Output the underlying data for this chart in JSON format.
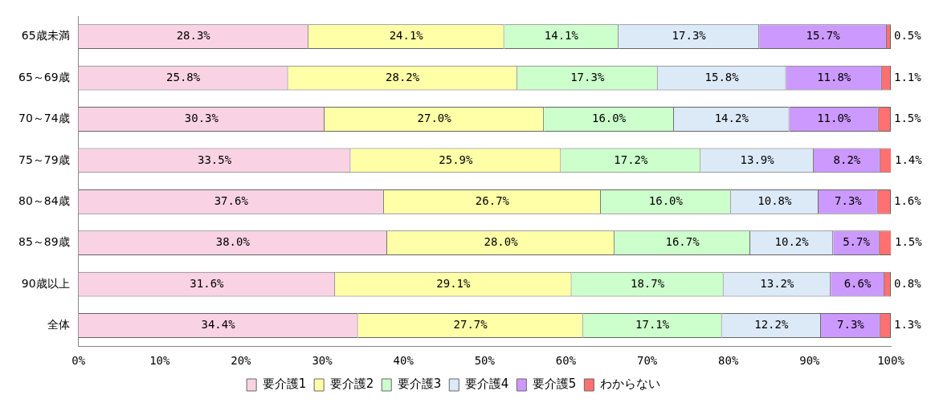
{
  "chart_data": {
    "type": "bar",
    "orientation": "horizontal",
    "stacked": true,
    "legend": "bottom",
    "grid": false,
    "categories": [
      "65歳未満",
      "65～69歳",
      "70～74歳",
      "75～79歳",
      "80～84歳",
      "85～89歳",
      "90歳以上",
      "全体"
    ],
    "xlim": [
      0,
      100
    ],
    "xticks": [
      {
        "value": 0,
        "label": "0%"
      },
      {
        "value": 10,
        "label": "10%"
      },
      {
        "value": 20,
        "label": "20%"
      },
      {
        "value": 30,
        "label": "30%"
      },
      {
        "value": 40,
        "label": "40%"
      },
      {
        "value": 50,
        "label": "50%"
      },
      {
        "value": 60,
        "label": "60%"
      },
      {
        "value": 70,
        "label": "70%"
      },
      {
        "value": 80,
        "label": "80%"
      },
      {
        "value": 90,
        "label": "90%"
      },
      {
        "value": 100,
        "label": "100%"
      }
    ],
    "series": [
      {
        "name": "要介護1",
        "color": "#f9d3e3",
        "values": [
          28.3,
          25.8,
          30.3,
          33.5,
          37.6,
          38.0,
          31.6,
          34.4
        ],
        "value_labels": [
          "28.3%",
          "25.8%",
          "30.3%",
          "33.5%",
          "37.6%",
          "38.0%",
          "31.6%",
          "34.4%"
        ]
      },
      {
        "name": "要介護2",
        "color": "#ffffa8",
        "values": [
          24.1,
          28.2,
          27.0,
          25.9,
          26.7,
          28.0,
          29.1,
          27.7
        ],
        "value_labels": [
          "24.1%",
          "28.2%",
          "27.0%",
          "25.9%",
          "26.7%",
          "28.0%",
          "29.1%",
          "27.7%"
        ]
      },
      {
        "name": "要介護3",
        "color": "#ccffcc",
        "values": [
          14.1,
          17.3,
          16.0,
          17.2,
          16.0,
          16.7,
          18.7,
          17.1
        ],
        "value_labels": [
          "14.1%",
          "17.3%",
          "16.0%",
          "17.2%",
          "16.0%",
          "16.7%",
          "18.7%",
          "17.1%"
        ]
      },
      {
        "name": "要介護4",
        "color": "#dce9f7",
        "values": [
          17.3,
          15.8,
          14.2,
          13.9,
          10.8,
          10.2,
          13.2,
          12.2
        ],
        "value_labels": [
          "17.3%",
          "15.8%",
          "14.2%",
          "13.9%",
          "10.8%",
          "10.2%",
          "13.2%",
          "12.2%"
        ]
      },
      {
        "name": "要介護5",
        "color": "#cc99ff",
        "values": [
          15.7,
          11.8,
          11.0,
          8.2,
          7.3,
          5.7,
          6.6,
          7.3
        ],
        "value_labels": [
          "15.7%",
          "11.8%",
          "11.0%",
          "8.2%",
          "7.3%",
          "5.7%",
          "6.6%",
          "7.3%"
        ]
      },
      {
        "name": "わからない",
        "color": "#ff7070",
        "values": [
          0.5,
          1.1,
          1.5,
          1.4,
          1.6,
          1.5,
          0.8,
          1.3
        ],
        "value_labels": [
          "0.5%",
          "1.1%",
          "1.5%",
          "1.4%",
          "1.6%",
          "1.5%",
          "0.8%",
          "1.3%"
        ]
      }
    ]
  }
}
